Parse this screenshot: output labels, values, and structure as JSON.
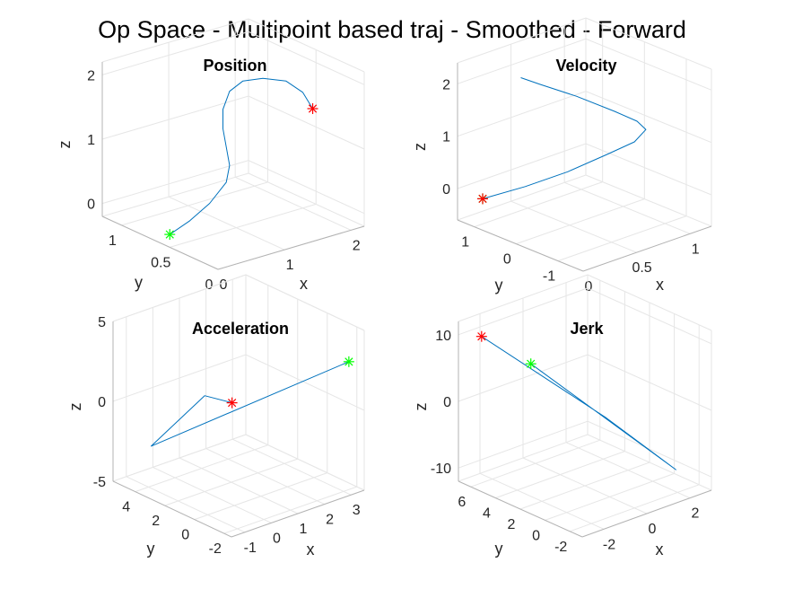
{
  "figure": {
    "title": "Op Space - Multipoint based traj - Smoothed - Forward"
  },
  "colors": {
    "trajectory": "#0072BD",
    "start_marker": "#00FF00",
    "end_marker": "#FF0000",
    "grid": "#e6e6e6",
    "box": "#b3b3b3",
    "text": "#262626"
  },
  "chart_data": [
    {
      "type": "line",
      "title": "Position",
      "xlabel": "x",
      "ylabel": "y",
      "zlabel": "z",
      "xlim": [
        0,
        2.2
      ],
      "ylim": [
        0,
        1.2
      ],
      "zlim": [
        -0.2,
        2.2
      ],
      "xticks": [
        0,
        1,
        2
      ],
      "xtick_labels": [
        "0",
        "1",
        "2"
      ],
      "yticks": [
        0,
        0.5,
        1
      ],
      "ytick_labels": [
        "0",
        "0.5",
        "1"
      ],
      "zticks": [
        0,
        1,
        2
      ],
      "ztick_labels": [
        "0",
        "1",
        "2"
      ],
      "grid": true,
      "series": [
        {
          "x": [
            0,
            0.3,
            0.6,
            0.85,
            0.9,
            0.85,
            0.8,
            0.8,
            0.9,
            1.1,
            1.4,
            1.75,
            2.0,
            2.15
          ],
          "y": [
            0.5,
            0.5,
            0.5,
            0.5,
            0.5,
            0.5,
            0.5,
            0.5,
            0.5,
            0.5,
            0.5,
            0.5,
            0.5,
            0.5
          ],
          "z": [
            0,
            0.12,
            0.3,
            0.55,
            0.8,
            1.1,
            1.4,
            1.7,
            1.95,
            2.05,
            2.0,
            1.85,
            1.6,
            1.3
          ]
        }
      ],
      "start_point": {
        "x": 0,
        "y": 0.5,
        "z": 0
      },
      "end_point": {
        "x": 2.15,
        "y": 0.5,
        "z": 1.3
      }
    },
    {
      "type": "line",
      "title": "Velocity",
      "xlabel": "x",
      "ylabel": "y",
      "zlabel": "z",
      "xlim": [
        0,
        1.2
      ],
      "ylim": [
        -1.6,
        1.4
      ],
      "zlim": [
        -0.6,
        2.4
      ],
      "xticks": [
        0,
        0.5,
        1
      ],
      "xtick_labels": [
        "0",
        "0.5",
        "1"
      ],
      "yticks": [
        -1,
        0,
        1
      ],
      "ytick_labels": [
        "-1",
        "0",
        "1"
      ],
      "zticks": [
        0,
        1,
        2
      ],
      "ztick_labels": [
        "0",
        "1",
        "2"
      ],
      "grid": true,
      "series": [
        {
          "x": [
            0,
            0.3,
            0.6,
            0.85,
            0.95,
            0.9,
            0.7,
            0.45,
            0.25,
            0.15,
            0.2
          ],
          "y": [
            0.8,
            0.55,
            0.3,
            0.0,
            -0.4,
            -0.8,
            -1.1,
            -1.2,
            -0.8,
            -0.2,
            0.4
          ],
          "z": [
            0,
            0.1,
            0.25,
            0.5,
            0.8,
            1.2,
            1.6,
            2.0,
            2.3,
            2.4,
            2.3
          ]
        }
      ],
      "start_point": {
        "x": 0,
        "y": 0.8,
        "z": 0
      },
      "end_point": {
        "x": 0,
        "y": 0.8,
        "z": 0
      }
    },
    {
      "type": "line",
      "title": "Acceleration",
      "xlabel": "x",
      "ylabel": "y",
      "zlabel": "z",
      "xlim": [
        -1.5,
        3.5
      ],
      "ylim": [
        -2.5,
        5.5
      ],
      "zlim": [
        -5,
        5
      ],
      "xticks": [
        -1,
        0,
        1,
        2,
        3
      ],
      "xtick_labels": [
        "-1",
        "0",
        "1",
        "2",
        "3"
      ],
      "yticks": [
        -2,
        0,
        2,
        4
      ],
      "ytick_labels": [
        "-2",
        "0",
        "2",
        "4"
      ],
      "zticks": [
        -5,
        0,
        5
      ],
      "ztick_labels": [
        "-5",
        "0",
        "5"
      ],
      "grid": true,
      "series": [
        {
          "x": [
            -1.2,
            0.0,
            -0.9,
            3.2
          ],
          "y": [
            -2.0,
            2.0,
            4.0,
            -2.0
          ],
          "z": [
            3.0,
            1.0,
            -2.5,
            3.0
          ]
        }
      ],
      "start_point": {
        "x": 3.2,
        "y": -2.0,
        "z": 3.0
      },
      "end_point": {
        "x": -1.2,
        "y": -2.0,
        "z": 3.0
      }
    },
    {
      "type": "line",
      "title": "Jerk",
      "xlabel": "x",
      "ylabel": "y",
      "zlabel": "z",
      "xlim": [
        -3,
        3
      ],
      "ylim": [
        -3,
        7
      ],
      "zlim": [
        -12,
        12
      ],
      "xticks": [
        -2,
        0,
        2
      ],
      "xtick_labels": [
        "-2",
        "0",
        "2"
      ],
      "yticks": [
        -2,
        0,
        2,
        4,
        6
      ],
      "ytick_labels": [
        "-2",
        "0",
        "2",
        "4",
        "6"
      ],
      "zticks": [
        -10,
        0,
        10
      ],
      "ztick_labels": [
        "-10",
        "0",
        "10"
      ],
      "grid": true,
      "series": [
        {
          "x": [
            -2.5,
            1.0,
            2.5,
            -2.8
          ],
          "y": [
            6.0,
            2.0,
            -1.0,
            1.5
          ],
          "z": [
            10,
            -3,
            -10,
            10
          ]
        }
      ],
      "start_point": {
        "x": -2.8,
        "y": 1.5,
        "z": 10
      },
      "end_point": {
        "x": -2.5,
        "y": 6.0,
        "z": 10
      }
    }
  ]
}
